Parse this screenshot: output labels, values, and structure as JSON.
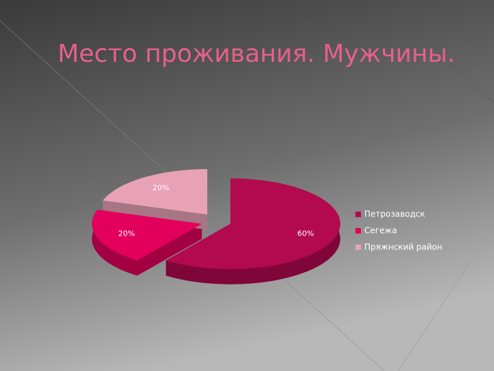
{
  "chart_data": {
    "type": "pie",
    "title": "Место проживания. Мужчины.",
    "categories": [
      "Петрозаводск",
      "Сегежа",
      "Пряжнский район"
    ],
    "values": [
      60,
      20,
      20
    ],
    "value_labels": [
      "60%",
      "20%",
      "20%"
    ],
    "colors": [
      "#b2094f",
      "#e2005c",
      "#e8a2b6"
    ],
    "legend": "right"
  }
}
